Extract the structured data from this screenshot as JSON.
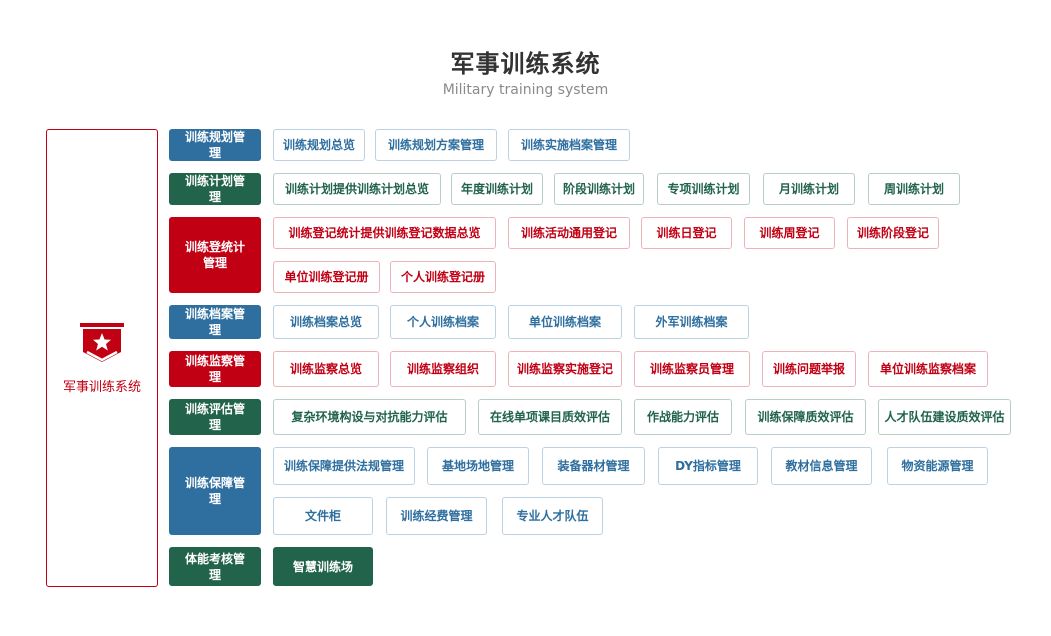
{
  "header": {
    "title": "军事训练系统",
    "subtitle": "Military training system"
  },
  "sidebar": {
    "label": "军事训练系统",
    "icon": "shield-star-icon",
    "color": "#c10014"
  },
  "colors": {
    "blue": "#2f6f9f",
    "green": "#21634b",
    "red": "#c10014"
  },
  "rows": [
    {
      "category": "训练规划管理",
      "items": [
        "训练规划总览",
        "训练规划方案管理",
        "训练实施档案管理"
      ]
    },
    {
      "category": "训练计划管理",
      "items": [
        "训练计划提供训练计划总览",
        "年度训练计划",
        "阶段训练计划",
        "专项训练计划",
        "月训练计划",
        "周训练计划"
      ]
    },
    {
      "category": "训练登统计管理",
      "items": [
        "训练登记统计提供训练登记数据总览",
        "训练活动通用登记",
        "训练日登记",
        "训练周登记",
        "训练阶段登记",
        "单位训练登记册",
        "个人训练登记册"
      ]
    },
    {
      "category": "训练档案管理",
      "items": [
        "训练档案总览",
        "个人训练档案",
        "单位训练档案",
        "外军训练档案"
      ]
    },
    {
      "category": "训练监察管理",
      "items": [
        "训练监察总览",
        "训练监察组织",
        "训练监察实施登记",
        "训练监察员管理",
        "训练问题举报",
        "单位训练监察档案"
      ]
    },
    {
      "category": "训练评估管理",
      "items": [
        "复杂环境构设与对抗能力评估",
        "在线单项课目质效评估",
        "作战能力评估",
        "训练保障质效评估",
        "人才队伍建设质效评估"
      ]
    },
    {
      "category": "训练保障管理",
      "items": [
        "训练保障提供法规管理",
        "基地场地管理",
        "装备器材管理",
        "DY指标管理",
        "教材信息管理",
        "物资能源管理",
        "文件柜",
        "训练经费管理",
        "专业人才队伍"
      ]
    },
    {
      "category": "体能考核管理",
      "items": [
        "智慧训练场"
      ]
    }
  ]
}
